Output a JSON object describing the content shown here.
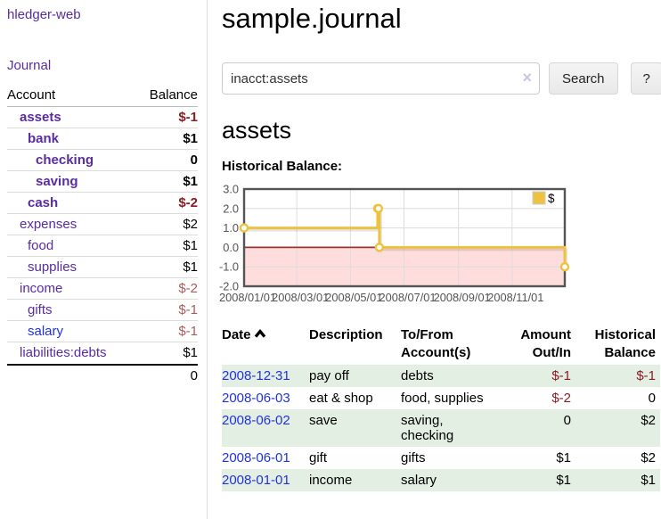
{
  "colors": {
    "link_purple": "#5a2ca0",
    "link_blue": "#2233dd",
    "negative_strong": "#8b1c24",
    "negative_muted": "#a85b5b",
    "row_shade_green": "#e3efe3",
    "chart_line_gold": "#edc240",
    "chart_negative_fill": "#ffdddd",
    "chart_zero_line": "#993333",
    "chart_border": "#545454"
  },
  "sidebar": {
    "brand": "hledger-web",
    "nav": {
      "journal": "Journal"
    },
    "table": {
      "account_header": "Account",
      "balance_header": "Balance",
      "accounts": [
        {
          "name": "assets",
          "balance": "$-1",
          "level": 1,
          "bold": true,
          "link_style": "visited",
          "balance_style": "negative-strong"
        },
        {
          "name": "bank",
          "balance": "$1",
          "level": 2,
          "bold": true,
          "link_style": "visited",
          "balance_style": "normal"
        },
        {
          "name": "checking",
          "balance": "0",
          "level": 3,
          "bold": true,
          "link_style": "visited",
          "balance_style": "normal"
        },
        {
          "name": "saving",
          "balance": "$1",
          "level": 3,
          "bold": true,
          "link_style": "visited",
          "balance_style": "normal"
        },
        {
          "name": "cash",
          "balance": "$-2",
          "level": 2,
          "bold": true,
          "link_style": "visited",
          "balance_style": "negative-strong"
        },
        {
          "name": "expenses",
          "balance": "$2",
          "level": 1,
          "bold": false,
          "link_style": "visited",
          "balance_style": "normal"
        },
        {
          "name": "food",
          "balance": "$1",
          "level": 2,
          "bold": false,
          "link_style": "visited",
          "balance_style": "normal"
        },
        {
          "name": "supplies",
          "balance": "$1",
          "level": 2,
          "bold": false,
          "link_style": "visited",
          "balance_style": "normal"
        },
        {
          "name": "income",
          "balance": "$-2",
          "level": 1,
          "bold": false,
          "link_style": "visited",
          "balance_style": "negative-muted"
        },
        {
          "name": "gifts",
          "balance": "$-1",
          "level": 2,
          "bold": false,
          "link_style": "visited",
          "balance_style": "negative-muted"
        },
        {
          "name": "salary",
          "balance": "$-1",
          "level": 2,
          "bold": false,
          "link_style": "unvisited",
          "balance_style": "negative-muted"
        },
        {
          "name": "liabilities:debts",
          "balance": "$1",
          "level": 1,
          "bold": false,
          "link_style": "visited",
          "balance_style": "normal"
        }
      ],
      "total": "0"
    }
  },
  "main": {
    "title": "sample.journal",
    "search": {
      "value": "inacct:assets",
      "clear_icon": "×",
      "search_button": "Search",
      "help_button": "?"
    },
    "account_title": "assets",
    "chart_title": "Historical Balance:"
  },
  "chart_data": {
    "type": "line",
    "step": true,
    "title": "Historical Balance",
    "legend_entries": [
      "$"
    ],
    "legend_position": "top-right",
    "grid": true,
    "ylim": [
      -2,
      3
    ],
    "yticks": [
      "3.0",
      "2.0",
      "1.0",
      "0.0",
      "-1.0",
      "-2.0"
    ],
    "xticks": [
      "2008/01/01",
      "2008/03/01",
      "2008/05/01",
      "2008/07/01",
      "2008/09/01",
      "2008/11/01"
    ],
    "xrange": [
      "2008-01-01",
      "2008-12-31"
    ],
    "negative_region": {
      "from": 0,
      "to": -2
    },
    "series": [
      {
        "name": "$",
        "color": "#edc240",
        "x": [
          "2008-01-01",
          "2008-06-01",
          "2008-06-02",
          "2008-06-03",
          "2008-12-31"
        ],
        "y": [
          1,
          2,
          2,
          0,
          -1
        ]
      }
    ]
  },
  "register": {
    "columns": [
      {
        "label": "Date",
        "sorted_asc": true,
        "align": "left"
      },
      {
        "label": "Description",
        "align": "left"
      },
      {
        "label": "To/From Account(s)",
        "align": "left"
      },
      {
        "label": "Amount Out/In",
        "align": "right"
      },
      {
        "label": "Historical Balance",
        "align": "right"
      }
    ],
    "rows": [
      {
        "date": "2008-12-31",
        "description": "pay off",
        "accounts": "debts",
        "amount": "$-1",
        "amount_negative": true,
        "balance": "$-1",
        "balance_negative": true,
        "shaded": true
      },
      {
        "date": "2008-06-03",
        "description": "eat & shop",
        "accounts": "food, supplies",
        "amount": "$-2",
        "amount_negative": true,
        "balance": "0",
        "balance_negative": false,
        "shaded": false
      },
      {
        "date": "2008-06-02",
        "description": "save",
        "accounts": "saving, checking",
        "amount": "0",
        "amount_negative": false,
        "balance": "$2",
        "balance_negative": false,
        "shaded": true
      },
      {
        "date": "2008-06-01",
        "description": "gift",
        "accounts": "gifts",
        "amount": "$1",
        "amount_negative": false,
        "balance": "$2",
        "balance_negative": false,
        "shaded": false
      },
      {
        "date": "2008-01-01",
        "description": "income",
        "accounts": "salary",
        "amount": "$1",
        "amount_negative": false,
        "balance": "$1",
        "balance_negative": false,
        "shaded": true
      }
    ]
  }
}
